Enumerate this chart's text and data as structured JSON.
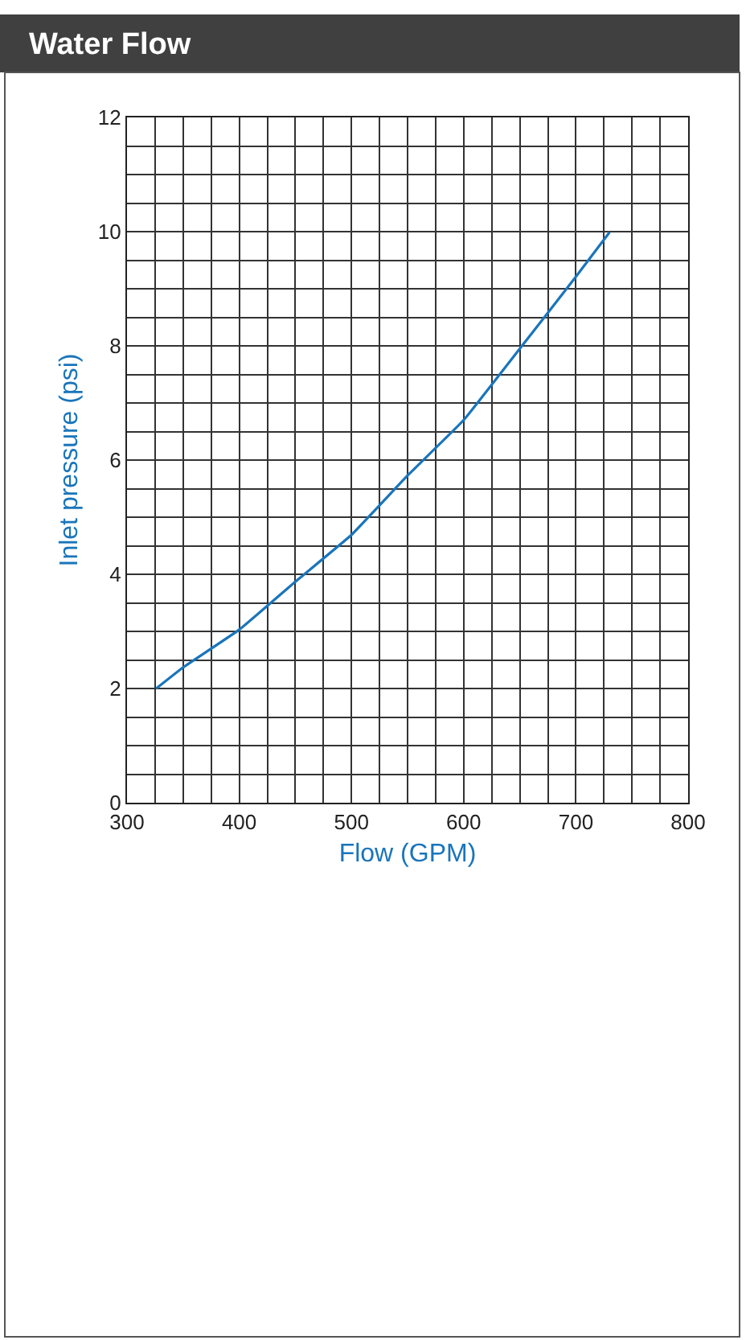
{
  "chart_data": {
    "type": "line",
    "title": "Water Flow",
    "xlabel": "Flow (GPM)",
    "ylabel": "Inlet pressure (psi)",
    "x": [
      326,
      350,
      400,
      450,
      500,
      550,
      600,
      650,
      700,
      730
    ],
    "series": [
      {
        "color": "#1a75bb",
        "values": [
          2.0,
          2.37,
          3.03,
          3.87,
          4.69,
          5.73,
          6.7,
          7.95,
          9.21,
          9.99
        ]
      }
    ],
    "xlim": [
      300,
      800
    ],
    "ylim": [
      0,
      12
    ],
    "xticks": [
      300,
      {
        "value": 325,
        "label": null
      },
      {
        "value": 350,
        "label": null
      },
      {
        "value": 375,
        "label": null
      },
      400,
      {
        "value": 425,
        "label": null
      },
      {
        "value": 450,
        "label": null
      },
      {
        "value": 475,
        "label": null
      },
      500,
      {
        "value": 525,
        "label": null
      },
      {
        "value": 550,
        "label": null
      },
      {
        "value": 575,
        "label": null
      },
      600,
      {
        "value": 625,
        "label": null
      },
      {
        "value": 650,
        "label": null
      },
      {
        "value": 675,
        "label": null
      },
      700,
      {
        "value": 725,
        "label": null
      },
      {
        "value": 750,
        "label": null
      },
      {
        "value": 775,
        "label": null
      },
      800
    ],
    "yticks": [
      0,
      {
        "value": 0.5,
        "label": null
      },
      {
        "value": 1,
        "label": null
      },
      {
        "value": 1.5,
        "label": null
      },
      2,
      {
        "value": 2.5,
        "label": null
      },
      {
        "value": 3,
        "label": null
      },
      {
        "value": 3.5,
        "label": null
      },
      4,
      {
        "value": 4.5,
        "label": null
      },
      {
        "value": 5,
        "label": null
      },
      {
        "value": 5.5,
        "label": null
      },
      6,
      {
        "value": 6.5,
        "label": null
      },
      {
        "value": 7,
        "label": null
      },
      {
        "value": 7.5,
        "label": null
      },
      8,
      {
        "value": 8.5,
        "label": null
      },
      {
        "value": 9,
        "label": null
      },
      {
        "value": 9.5,
        "label": null
      },
      10,
      {
        "value": 10.5,
        "label": null
      },
      {
        "value": 11,
        "label": null
      },
      {
        "value": 11.5,
        "label": null
      },
      12
    ],
    "grid": true,
    "marker": "none",
    "line_style": "solid"
  }
}
